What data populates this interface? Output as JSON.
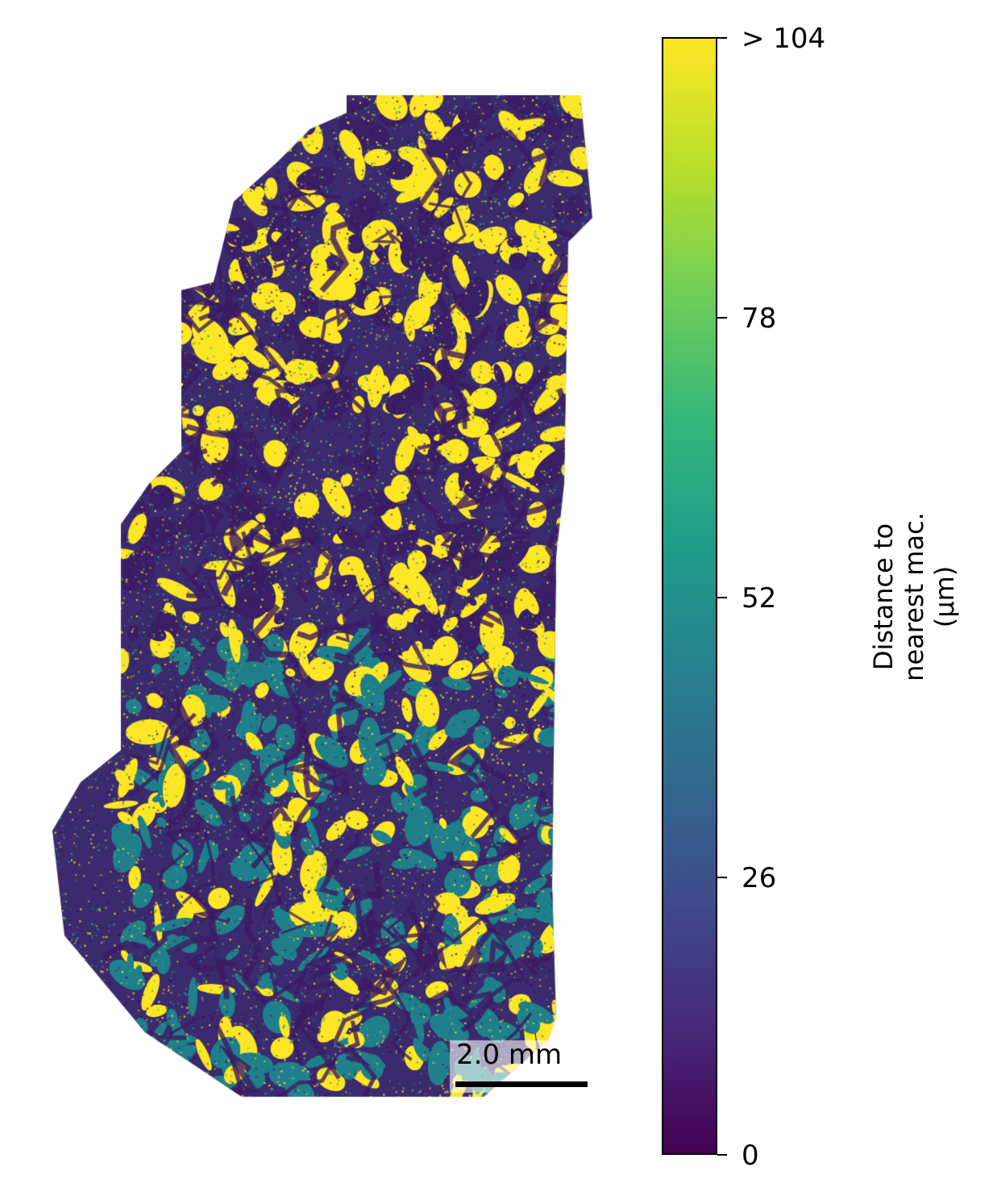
{
  "scale_bar": {
    "label": "2.0 mm"
  },
  "colorbar": {
    "label": "Distance to\nnearest mac.\n(µm)",
    "ticks": [
      "> 104",
      "78",
      "52",
      "26",
      "0"
    ],
    "colormap": "viridis",
    "range": [
      0,
      104
    ]
  }
}
